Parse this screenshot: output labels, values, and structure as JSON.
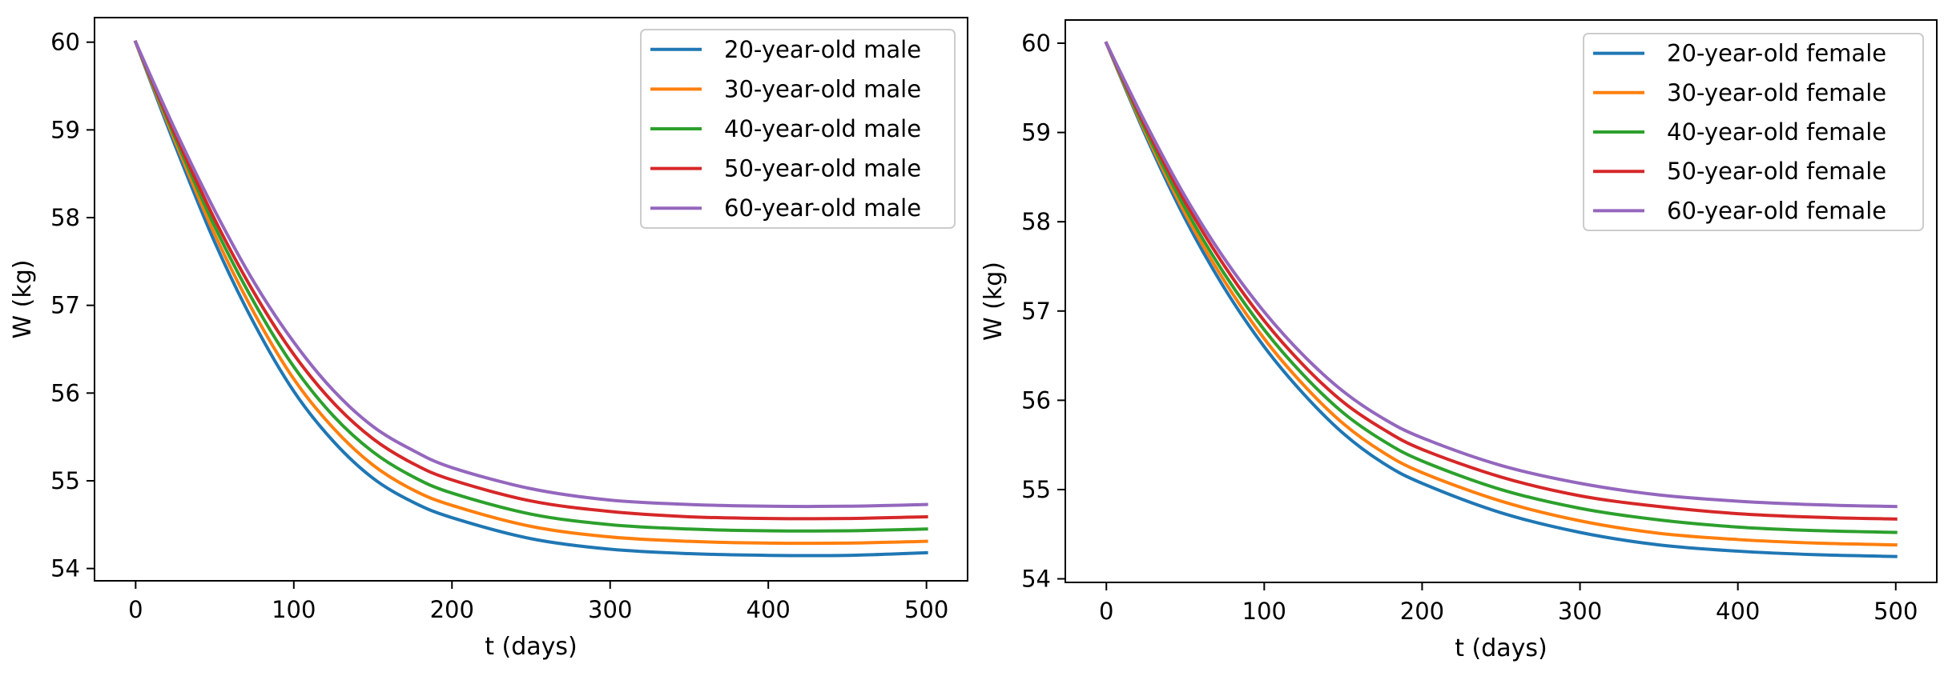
{
  "chart_data": [
    {
      "type": "line",
      "xlabel": "t (days)",
      "ylabel": "W (kg)",
      "xlim": [
        -26,
        526
      ],
      "ylim": [
        53.86,
        60.28
      ],
      "xticks": [
        0,
        100,
        200,
        300,
        400,
        500
      ],
      "yticks": [
        54,
        55,
        56,
        57,
        58,
        59,
        60
      ],
      "grid": false,
      "legend": "top-right",
      "series": [
        {
          "name": "20-year-old male",
          "color": "#1f77b4",
          "x": [
            0,
            25,
            50,
            75,
            100,
            125,
            150,
            175,
            200,
            250,
            300,
            350,
            400,
            450,
            500
          ],
          "y": [
            60.0,
            58.82,
            57.72,
            56.79,
            56.02,
            55.45,
            55.03,
            54.76,
            54.58,
            54.34,
            54.22,
            54.17,
            54.15,
            54.15,
            54.18
          ]
        },
        {
          "name": "30-year-old male",
          "color": "#ff7f0e",
          "x": [
            0,
            25,
            50,
            75,
            100,
            125,
            150,
            175,
            200,
            250,
            300,
            350,
            400,
            450,
            500
          ],
          "y": [
            60.0,
            58.87,
            57.81,
            56.91,
            56.16,
            55.6,
            55.18,
            54.9,
            54.72,
            54.48,
            54.36,
            54.31,
            54.29,
            54.29,
            54.31
          ]
        },
        {
          "name": "40-year-old male",
          "color": "#2ca02c",
          "x": [
            0,
            25,
            50,
            75,
            100,
            125,
            150,
            175,
            200,
            250,
            300,
            350,
            400,
            450,
            500
          ],
          "y": [
            60.0,
            58.91,
            57.9,
            57.03,
            56.3,
            55.74,
            55.33,
            55.05,
            54.86,
            54.62,
            54.5,
            54.45,
            54.43,
            54.43,
            54.45
          ]
        },
        {
          "name": "50-year-old male",
          "color": "#d62728",
          "x": [
            0,
            25,
            50,
            75,
            100,
            125,
            150,
            175,
            200,
            250,
            300,
            350,
            400,
            450,
            500
          ],
          "y": [
            60.0,
            58.95,
            57.98,
            57.14,
            56.44,
            55.89,
            55.48,
            55.2,
            55.01,
            54.77,
            54.65,
            54.59,
            54.57,
            54.57,
            54.59
          ]
        },
        {
          "name": "60-year-old male",
          "color": "#9467bd",
          "x": [
            0,
            25,
            50,
            75,
            100,
            125,
            150,
            175,
            200,
            250,
            300,
            350,
            400,
            450,
            500
          ],
          "y": [
            60.0,
            59.0,
            58.08,
            57.26,
            56.58,
            56.03,
            55.62,
            55.35,
            55.15,
            54.91,
            54.78,
            54.73,
            54.71,
            54.71,
            54.73
          ]
        }
      ]
    },
    {
      "type": "line",
      "xlabel": "t (days)",
      "ylabel": "W (kg)",
      "xlim": [
        -26,
        526
      ],
      "ylim": [
        53.96,
        60.26
      ],
      "xticks": [
        0,
        100,
        200,
        300,
        400,
        500
      ],
      "yticks": [
        54,
        55,
        56,
        57,
        58,
        59,
        60
      ],
      "grid": false,
      "legend": "top-right",
      "series": [
        {
          "name": "20-year-old female",
          "color": "#1f77b4",
          "x": [
            0,
            25,
            50,
            75,
            100,
            125,
            150,
            175,
            200,
            250,
            300,
            350,
            400,
            450,
            500
          ],
          "y": [
            60.0,
            58.96,
            58.03,
            57.25,
            56.6,
            56.07,
            55.63,
            55.3,
            55.07,
            54.74,
            54.52,
            54.38,
            54.31,
            54.27,
            54.25
          ]
        },
        {
          "name": "30-year-old female",
          "color": "#ff7f0e",
          "x": [
            0,
            25,
            50,
            75,
            100,
            125,
            150,
            175,
            200,
            250,
            300,
            350,
            400,
            450,
            500
          ],
          "y": [
            60.0,
            58.99,
            58.09,
            57.33,
            56.69,
            56.17,
            55.74,
            55.42,
            55.19,
            54.87,
            54.65,
            54.51,
            54.44,
            54.4,
            54.38
          ]
        },
        {
          "name": "40-year-old female",
          "color": "#2ca02c",
          "x": [
            0,
            25,
            50,
            75,
            100,
            125,
            150,
            175,
            200,
            250,
            300,
            350,
            400,
            450,
            500
          ],
          "y": [
            60.0,
            59.02,
            58.15,
            57.41,
            56.79,
            56.28,
            55.86,
            55.55,
            55.32,
            55.0,
            54.79,
            54.66,
            54.58,
            54.54,
            54.52
          ]
        },
        {
          "name": "50-year-old female",
          "color": "#d62728",
          "x": [
            0,
            25,
            50,
            75,
            100,
            125,
            150,
            175,
            200,
            250,
            300,
            350,
            400,
            450,
            500
          ],
          "y": [
            60.0,
            59.06,
            58.22,
            57.5,
            56.89,
            56.39,
            55.98,
            55.68,
            55.45,
            55.14,
            54.93,
            54.81,
            54.73,
            54.69,
            54.67
          ]
        },
        {
          "name": "60-year-old female",
          "color": "#9467bd",
          "x": [
            0,
            25,
            50,
            75,
            100,
            125,
            150,
            175,
            200,
            250,
            300,
            350,
            400,
            450,
            500
          ],
          "y": [
            60.0,
            59.1,
            58.28,
            57.58,
            56.99,
            56.5,
            56.1,
            55.8,
            55.58,
            55.27,
            55.07,
            54.94,
            54.87,
            54.83,
            54.81
          ]
        }
      ]
    }
  ]
}
